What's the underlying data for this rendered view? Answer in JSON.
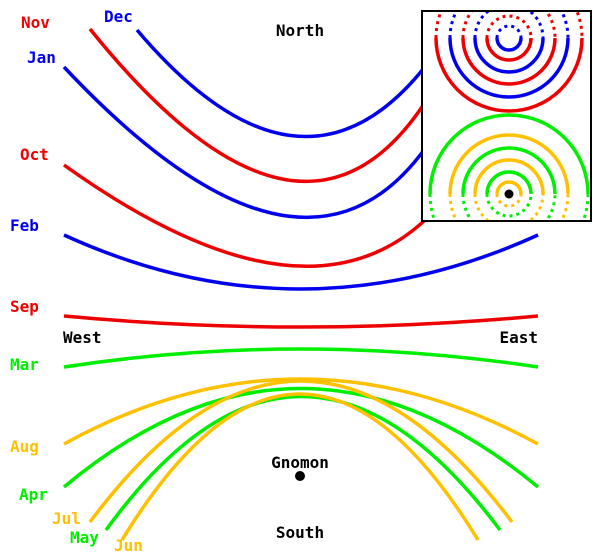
{
  "colors": {
    "winter": "#0000ee",
    "equinox_fall": "#ee0000",
    "spring": "#00ee00",
    "summer": "#ffc000",
    "ink": "#000000"
  },
  "compass": {
    "north": "North",
    "south": "South",
    "west": "West",
    "east": "East"
  },
  "gnomon_label": "Gnomon",
  "months": {
    "nov": "Nov",
    "dec": "Dec",
    "jan": "Jan",
    "oct": "Oct",
    "feb": "Feb",
    "sep": "Sep",
    "mar": "Mar",
    "aug": "Aug",
    "apr": "Apr",
    "jul": "Jul",
    "may": "May",
    "jun": "Jun"
  }
}
